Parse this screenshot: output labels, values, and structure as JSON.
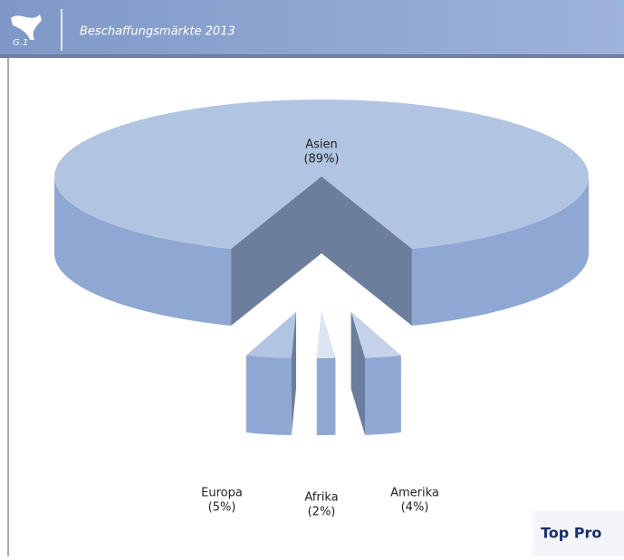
{
  "header": {
    "badge": "G.1"
  },
  "button": "Top Pro",
  "chart_data": {
    "type": "pie3d",
    "title": "Beschaffungsmärkte 2013",
    "categories": [
      "Asien",
      "Amerika",
      "Afrika",
      "Europa"
    ],
    "values": [
      89,
      4,
      2,
      5
    ],
    "value_labels": [
      "(89%)",
      "(4%)",
      "(2%)",
      "(5%)"
    ],
    "colors": [
      "#b1c4e1",
      "#c5d3ea",
      "#dde5f2",
      "#b1c4e1"
    ]
  }
}
